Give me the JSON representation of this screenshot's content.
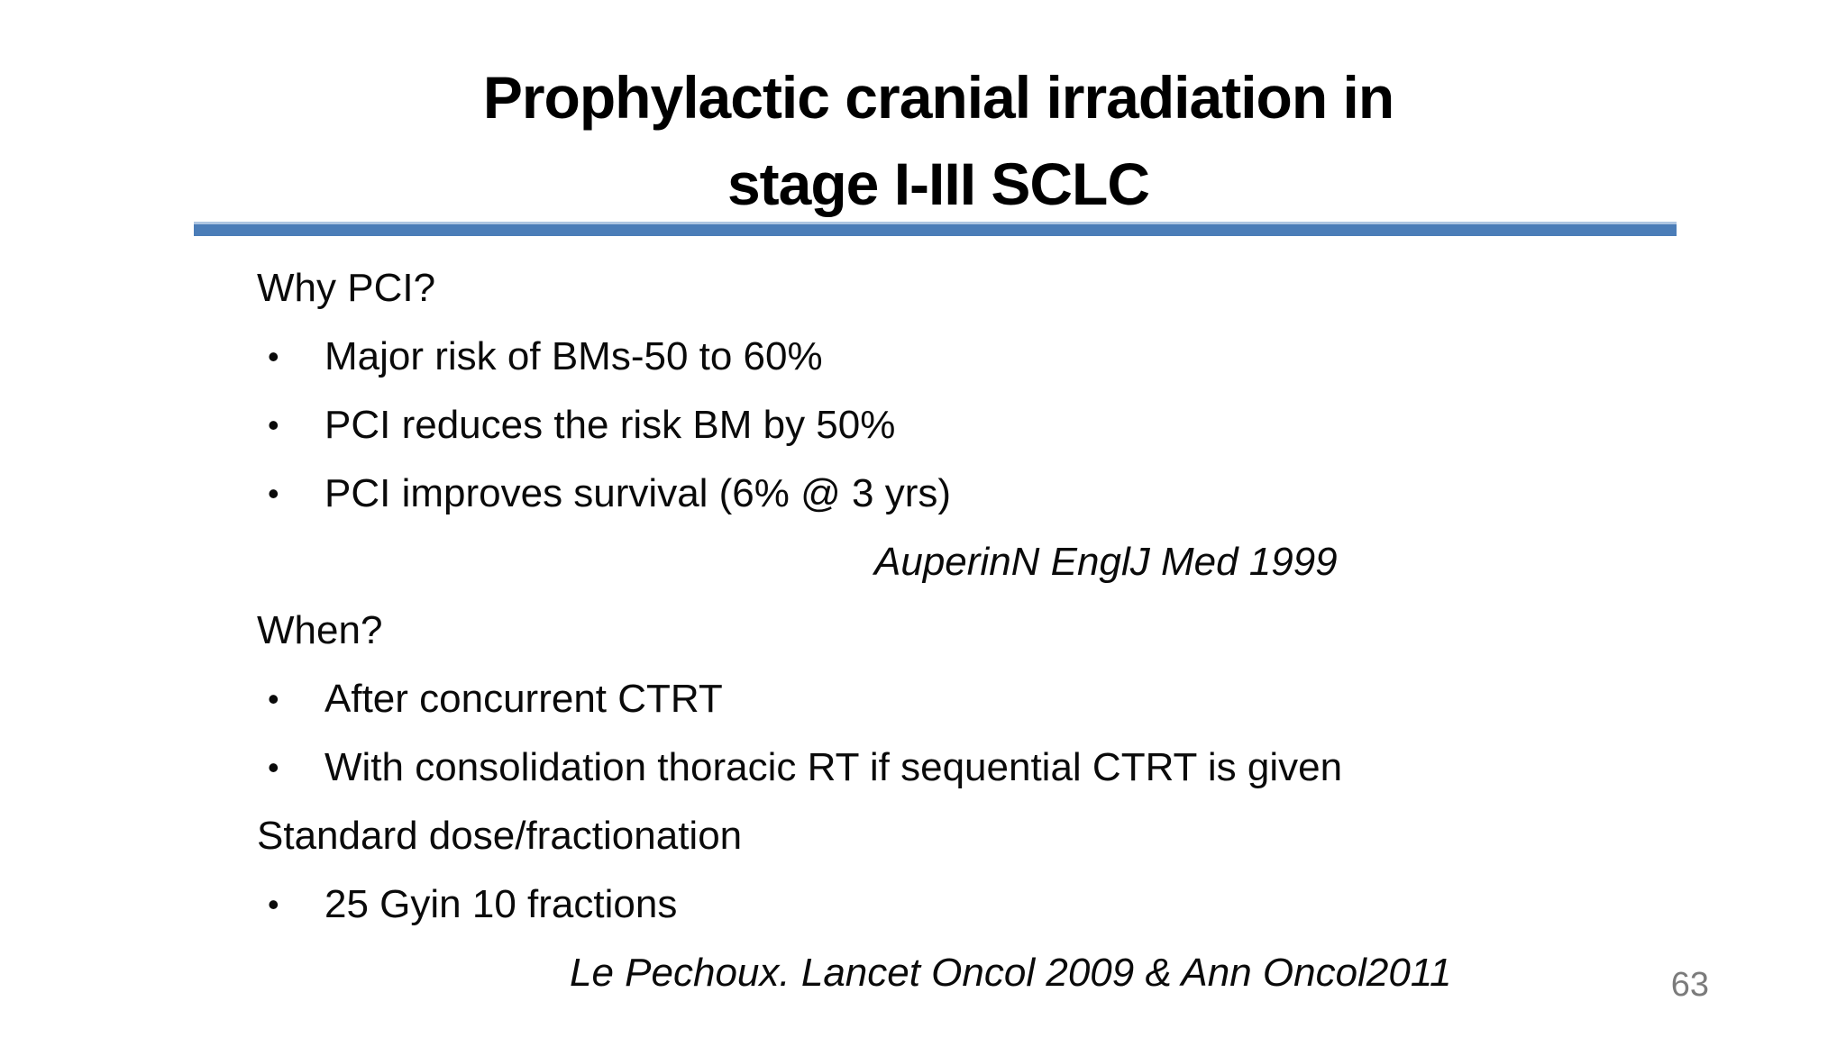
{
  "title": {
    "line1": "Prophylactic cranial irradiation in",
    "line2": "stage I-III SCLC"
  },
  "colors": {
    "divider_blue": "#4b7db8",
    "divider_highlight": "#aec6e2",
    "page_number_gray": "#7b7b7b",
    "text_black": "#000000"
  },
  "bullet_glyph": "•",
  "content": {
    "lines": [
      {
        "type": "plain",
        "text": "Why PCI?"
      },
      {
        "type": "bullet",
        "text": "Major risk of BMs-50 to 60%"
      },
      {
        "type": "bullet",
        "text": "PCI reduces the risk BM by 50%"
      },
      {
        "type": "bullet",
        "text": "PCI improves survival (6% @ 3 yrs)"
      },
      {
        "type": "citation1",
        "text": "AuperinN EnglJ Med 1999"
      },
      {
        "type": "plain",
        "text": "When?"
      },
      {
        "type": "bullet",
        "text": "After concurrent CTRT"
      },
      {
        "type": "bullet",
        "text": "With consolidation thoracic RT if sequential CTRT is given"
      },
      {
        "type": "plain",
        "text": "Standard dose/fractionation"
      },
      {
        "type": "bullet",
        "text": "25 Gyin 10 fractions"
      },
      {
        "type": "citation2",
        "text": "Le Pechoux. Lancet Oncol 2009 & Ann Oncol2011"
      }
    ]
  },
  "page": {
    "number": "63"
  }
}
